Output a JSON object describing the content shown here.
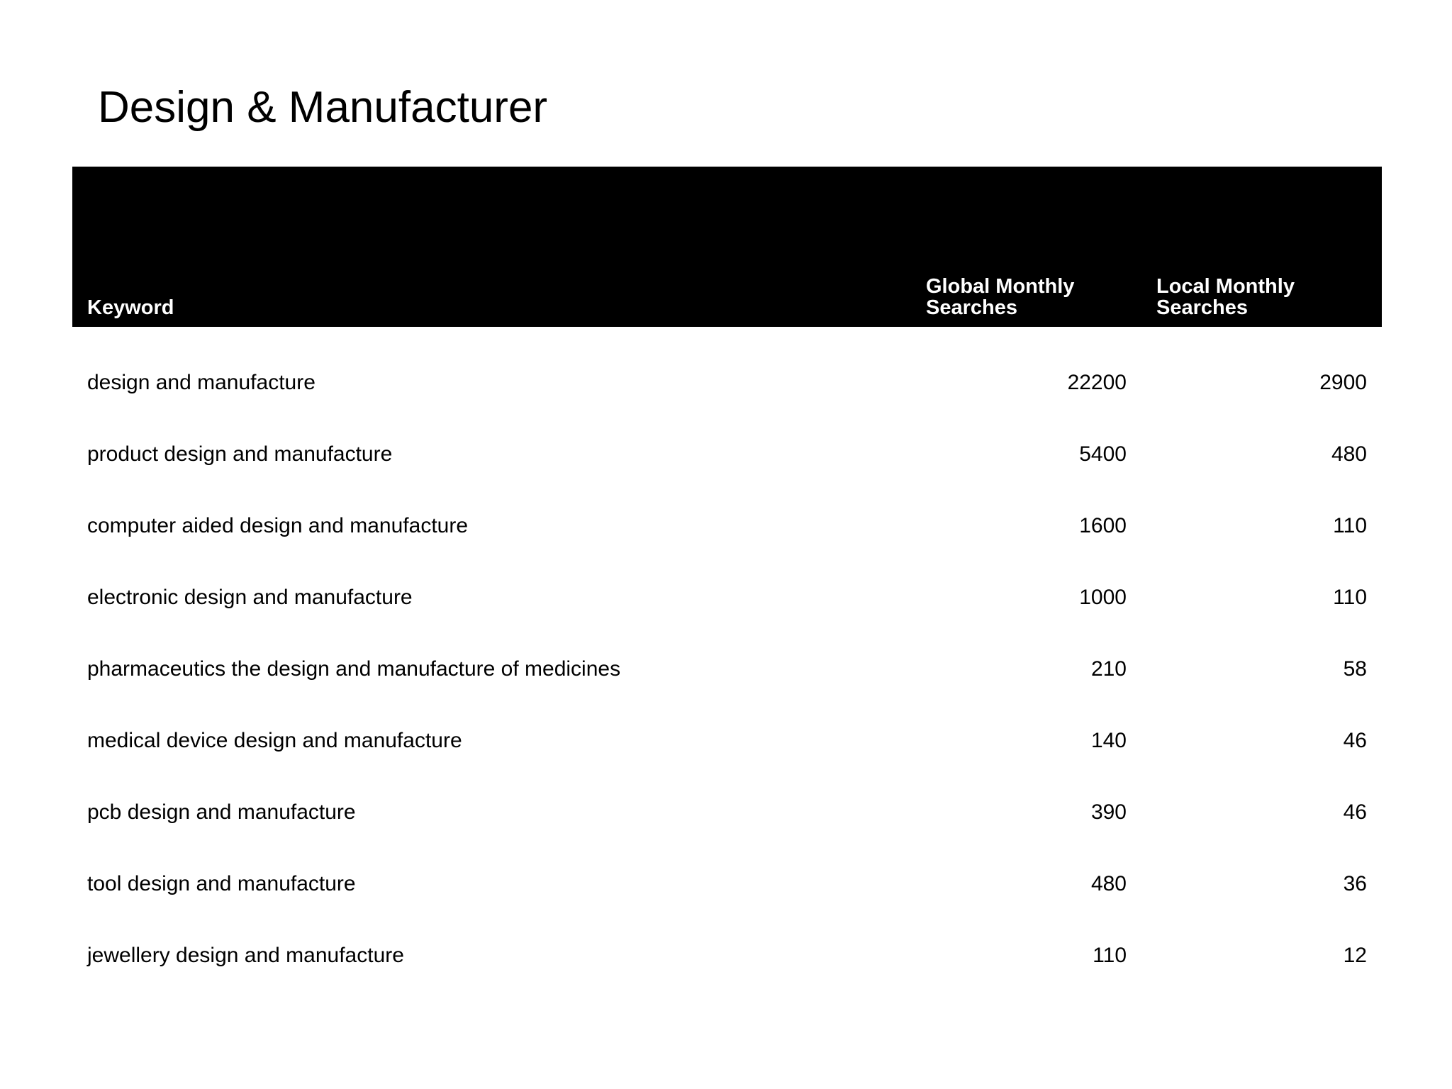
{
  "page": {
    "title": "Design & Manufacturer"
  },
  "colors": {
    "page_bg": "#ffffff",
    "header_bg": "#000000",
    "header_text": "#ffffff",
    "body_text": "#000000"
  },
  "table": {
    "columns": [
      {
        "label": "Keyword",
        "align": "left"
      },
      {
        "label": "Global Monthly Searches",
        "align": "right"
      },
      {
        "label": "Local Monthly Searches",
        "align": "right"
      }
    ],
    "rows": [
      {
        "keyword": "design and manufacture",
        "global": "22200",
        "local": "2900"
      },
      {
        "keyword": "product design and manufacture",
        "global": "5400",
        "local": "480"
      },
      {
        "keyword": "computer aided design and manufacture",
        "global": "1600",
        "local": "110"
      },
      {
        "keyword": "electronic design and manufacture",
        "global": "1000",
        "local": "110"
      },
      {
        "keyword": "pharmaceutics the design and manufacture of medicines",
        "global": "210",
        "local": "58"
      },
      {
        "keyword": "medical device design and manufacture",
        "global": "140",
        "local": "46"
      },
      {
        "keyword": "pcb design and manufacture",
        "global": "390",
        "local": "46"
      },
      {
        "keyword": "tool design and manufacture",
        "global": "480",
        "local": "36"
      },
      {
        "keyword": "jewellery design and manufacture",
        "global": "110",
        "local": "12"
      }
    ]
  }
}
